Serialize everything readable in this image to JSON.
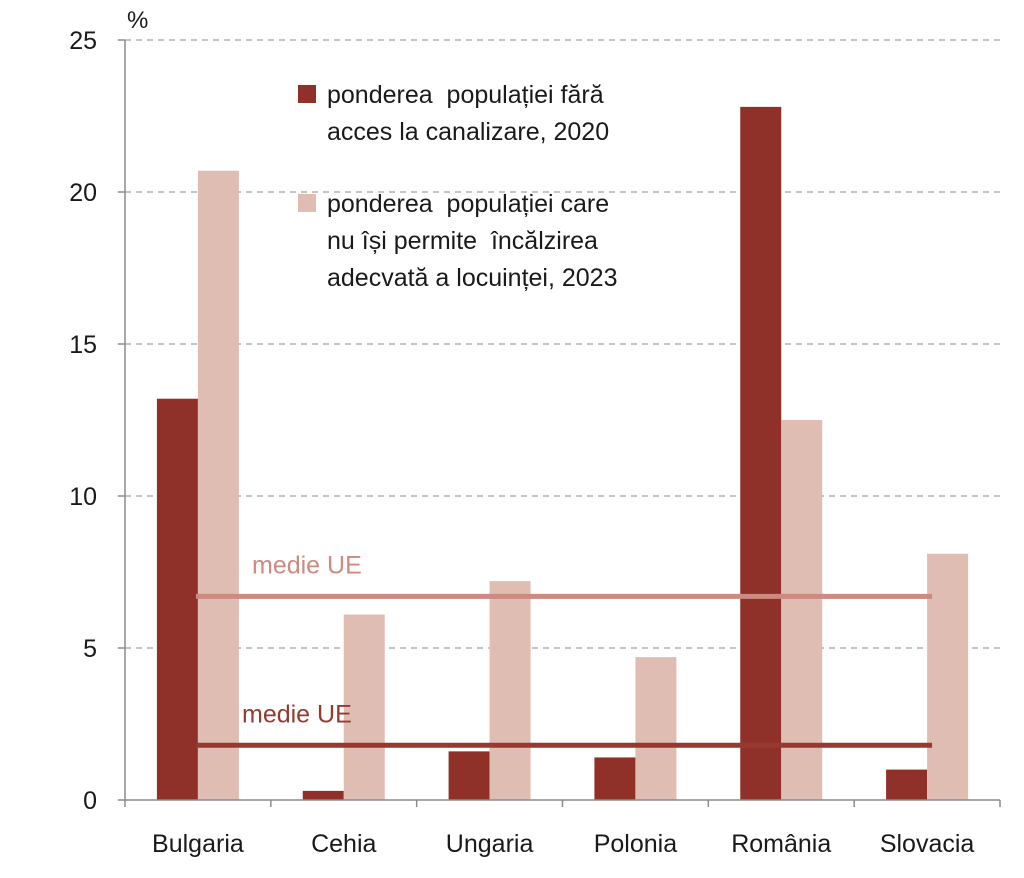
{
  "chart_data": {
    "type": "bar",
    "unit": "%",
    "categories": [
      "Bulgaria",
      "Cehia",
      "Ungaria",
      "Polonia",
      "România",
      "Slovacia"
    ],
    "ylim": [
      0,
      25
    ],
    "yticks": [
      "0",
      "5",
      "10",
      "15",
      "20",
      "25"
    ],
    "grid": true,
    "legend_position": "top-center",
    "series": [
      {
        "name_lines": [
          "ponderea  populației fără",
          "acces la canalizare, 2020"
        ],
        "color": "#8f3128",
        "values": [
          13.2,
          0.3,
          1.6,
          1.4,
          22.8,
          1.0
        ]
      },
      {
        "name_lines": [
          "ponderea  populației care",
          "nu își permite  încălzirea",
          "adecvată a locuinței, 2023"
        ],
        "color": "#e0bdb3",
        "values": [
          20.7,
          6.1,
          7.2,
          4.7,
          12.5,
          8.1
        ]
      }
    ],
    "reference_lines": [
      {
        "label": "medie UE",
        "value": 6.7,
        "color": "#cc8a80"
      },
      {
        "label": "medie UE",
        "value": 1.8,
        "color": "#963a30"
      }
    ]
  }
}
